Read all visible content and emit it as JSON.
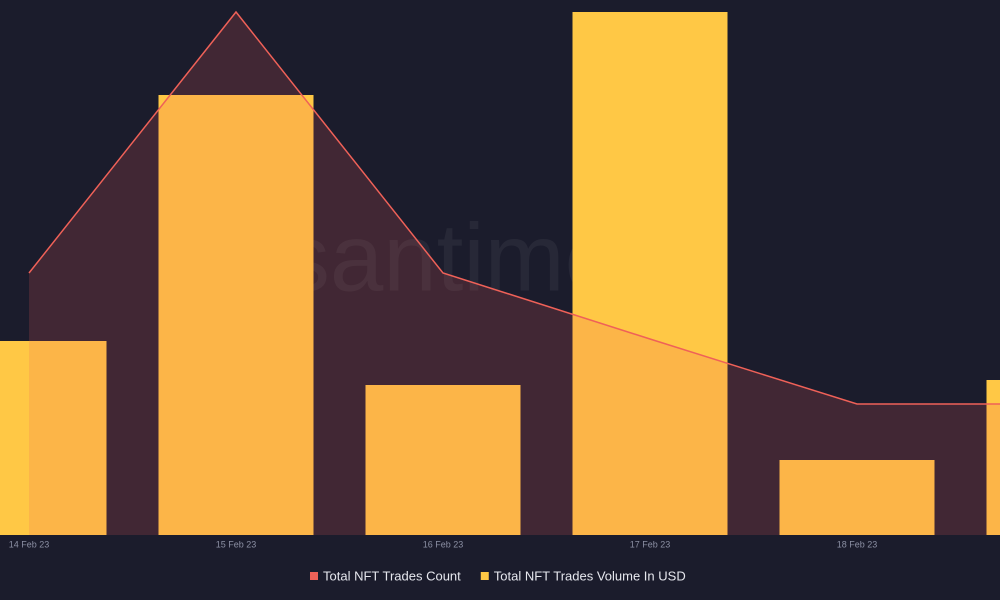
{
  "chart_data": {
    "type": "combo",
    "watermark": "santiment",
    "categories": [
      "14 Feb 23",
      "15 Feb 23",
      "16 Feb 23",
      "17 Feb 23",
      "18 Feb 23",
      null
    ],
    "ylim": [
      0,
      535
    ],
    "series": [
      {
        "name": "Total NFT Trades Count",
        "type": "line",
        "color": "#ef6158",
        "values": [
          262,
          523,
          262,
          196,
          131,
          131
        ]
      },
      {
        "name": "Total NFT Trades Volume In USD",
        "type": "bar",
        "color": "#ffc845",
        "values": [
          194,
          440,
          150,
          523,
          75,
          155
        ]
      }
    ]
  }
}
